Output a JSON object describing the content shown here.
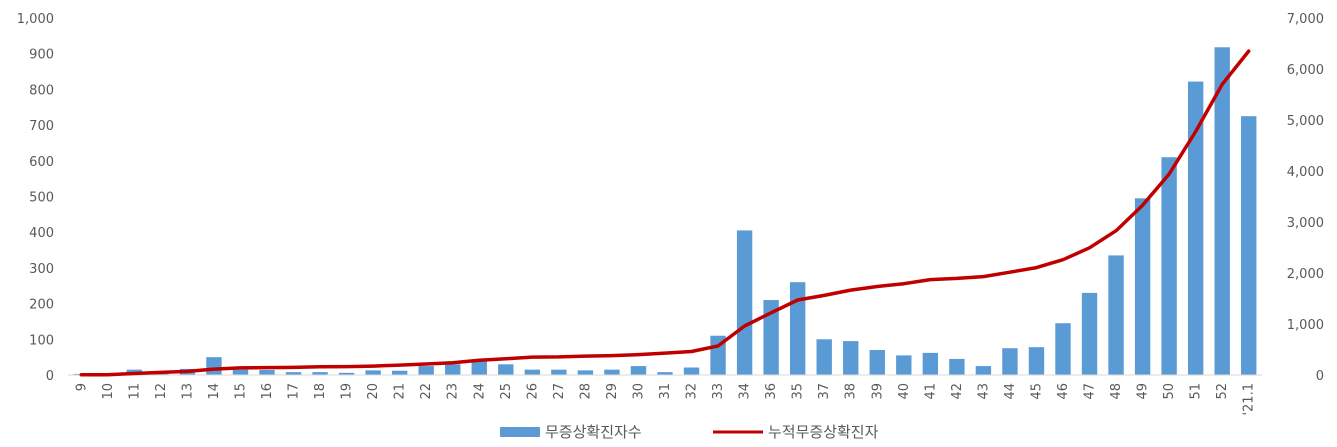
{
  "chart_data": {
    "type": "bar",
    "categories": [
      "9",
      "10",
      "11",
      "12",
      "13",
      "14",
      "15",
      "16",
      "17",
      "18",
      "19",
      "20",
      "21",
      "22",
      "23",
      "24",
      "25",
      "26",
      "27",
      "28",
      "29",
      "30",
      "31",
      "32",
      "33",
      "34",
      "36",
      "35",
      "37",
      "38",
      "39",
      "40",
      "41",
      "42",
      "43",
      "44",
      "45",
      "46",
      "47",
      "48",
      "49",
      "50",
      "51",
      "52",
      "'21.1"
    ],
    "series": [
      {
        "name": "무증상확진자수",
        "type": "bar",
        "axis": "left",
        "color": "#5b9bd5",
        "values": [
          3,
          1,
          15,
          3,
          17,
          50,
          15,
          14,
          8,
          8,
          6,
          13,
          12,
          25,
          30,
          40,
          30,
          15,
          15,
          13,
          15,
          25,
          8,
          21,
          110,
          405,
          210,
          260,
          100,
          95,
          70,
          55,
          62,
          45,
          25,
          75,
          78,
          145,
          230,
          335,
          495,
          610,
          822,
          918,
          725
        ]
      },
      {
        "name": "누적무증상확진자",
        "type": "line",
        "axis": "right",
        "color": "#c00000",
        "values": [
          5,
          5,
          30,
          50,
          70,
          115,
          140,
          145,
          150,
          160,
          165,
          175,
          195,
          215,
          240,
          290,
          320,
          350,
          355,
          370,
          380,
          400,
          430,
          460,
          570,
          960,
          1220,
          1470,
          1560,
          1665,
          1735,
          1790,
          1870,
          1895,
          1930,
          2015,
          2105,
          2260,
          2495,
          2830,
          3330,
          3940,
          4775,
          5700,
          6350
        ]
      }
    ],
    "y_left": {
      "range": [
        0,
        1000
      ],
      "ticks": [
        "0",
        "100",
        "200",
        "300",
        "400",
        "500",
        "600",
        "700",
        "800",
        "900",
        "1,000"
      ]
    },
    "y_right": {
      "range": [
        0,
        7000
      ],
      "ticks": [
        "0",
        "1,000",
        "2,000",
        "3,000",
        "4,000",
        "5,000",
        "6,000",
        "7,000"
      ]
    },
    "grid": false,
    "legend_position": "bottom",
    "title": "",
    "xlabel": "",
    "ylabel": ""
  }
}
